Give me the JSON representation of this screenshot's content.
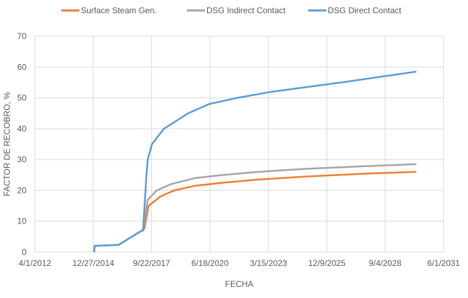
{
  "chart_data": {
    "type": "line",
    "title": "",
    "xlabel": "FECHA",
    "ylabel": "FACTOR DE RECOBRO, %",
    "ylim": [
      0,
      70
    ],
    "yticks": [
      0,
      10,
      20,
      30,
      40,
      50,
      60,
      70
    ],
    "xlim_decimal_year": [
      2012.25,
      2031.41
    ],
    "xtick_labels": [
      "4/1/2012",
      "12/27/2014",
      "9/22/2017",
      "6/18/2020",
      "3/15/2023",
      "12/9/2025",
      "9/4/2028",
      "6/1/2031"
    ],
    "xtick_values_decimal_year": [
      2012.25,
      2014.99,
      2017.72,
      2020.46,
      2023.2,
      2025.94,
      2028.67,
      2031.41
    ],
    "grid": true,
    "legend_position": "top",
    "series": [
      {
        "name": "Surface Steam Gen.",
        "color": "#ED7D31",
        "x": [
          2015.03,
          2015.05,
          2016.17,
          2017.15,
          2017.38,
          2017.58,
          2018.13,
          2018.79,
          2019.77,
          2021.07,
          2022.71,
          2024.99,
          2027.94,
          2030.13
        ],
        "y": [
          0,
          2,
          2.3,
          6.5,
          7.5,
          15,
          18,
          20,
          21.5,
          22.5,
          23.5,
          24.5,
          25.5,
          26
        ]
      },
      {
        "name": "DSG Indirect Contact",
        "color": "#A5A5A5",
        "x": [
          2015.03,
          2015.05,
          2016.17,
          2017.15,
          2017.32,
          2017.54,
          2017.97,
          2018.62,
          2019.77,
          2021.07,
          2022.71,
          2024.99,
          2028.26,
          2030.13
        ],
        "y": [
          0,
          2,
          2.3,
          6.5,
          7,
          17,
          20,
          22,
          24,
          25,
          26,
          27,
          28,
          28.5
        ]
      },
      {
        "name": "DSG Direct Contact",
        "color": "#5B9BD5",
        "x": [
          2015.03,
          2015.05,
          2016.17,
          2017.15,
          2017.32,
          2017.48,
          2017.54,
          2017.74,
          2018.3,
          2019.44,
          2020.42,
          2021.73,
          2023.36,
          2026.63,
          2030.13
        ],
        "y": [
          0,
          2,
          2.3,
          6.5,
          7,
          25,
          30,
          35,
          40,
          45,
          48,
          50,
          52,
          55,
          58.5
        ]
      }
    ]
  }
}
